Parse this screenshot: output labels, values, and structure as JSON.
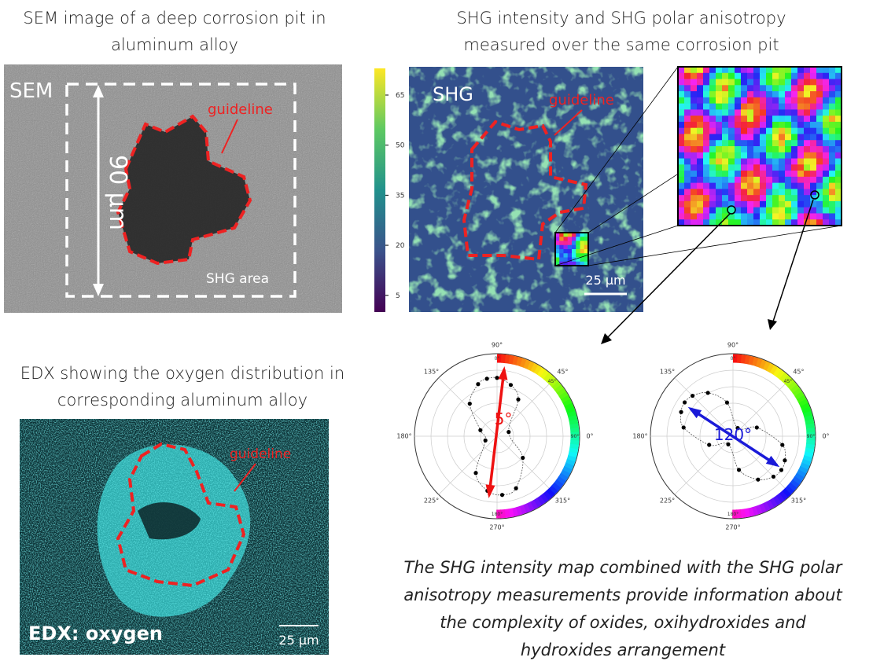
{
  "sem": {
    "title": [
      "SEM image of a deep corrosion pit in",
      "aluminum alloy"
    ],
    "label": "SEM",
    "guideline": "guideline",
    "scale": "90 µm",
    "area": "SHG area"
  },
  "shg": {
    "title": [
      "SHG intensity and SHG polar anisotropy",
      "measured over the same corrosion pit"
    ],
    "label": "SHG",
    "guideline": "guideline",
    "scale": "25 µm",
    "colorbar": {
      "lim": [
        0,
        73
      ],
      "ticks": [
        5,
        20,
        35,
        50,
        65
      ]
    }
  },
  "edx": {
    "title": [
      "EDX showing the oxygen distribution in",
      "corresponding aluminum alloy"
    ],
    "label": "EDX: oxygen",
    "guideline": "guideline",
    "scale": "25 µm"
  },
  "polar": {
    "rlim": [
      0,
      1.4
    ],
    "plots": [
      {
        "angle_ticks": [
          {
            "value": 0,
            "label": "0°"
          },
          {
            "value": 45,
            "label": "45°"
          },
          {
            "value": 90,
            "label": "90°"
          },
          {
            "value": 135,
            "label": "135°"
          },
          {
            "value": 180,
            "label": "180°"
          },
          {
            "value": 225,
            "label": "225°"
          },
          {
            "value": 270,
            "label": "270°"
          },
          {
            "value": 315,
            "label": "315°"
          }
        ],
        "ring_labels": [
          {
            "value": 0,
            "label": "0°"
          },
          {
            "value": 45,
            "label": "45°"
          },
          {
            "value": 90,
            "label": "90°"
          },
          {
            "value": 180,
            "label": "180°"
          }
        ],
        "arrow_label": "5°",
        "theta": [
          20,
          60,
          75,
          90,
          100,
          110,
          130,
          160,
          200,
          240,
          260,
          275,
          290,
          320
        ],
        "r": [
          0.21,
          0.72,
          0.9,
          0.99,
          0.99,
          0.94,
          0.72,
          0.3,
          0.21,
          0.72,
          0.94,
          1.0,
          0.94,
          0.57
        ]
      },
      {
        "angle_ticks": [
          {
            "value": 0,
            "label": "0°"
          },
          {
            "value": 45,
            "label": "45°"
          },
          {
            "value": 90,
            "label": "90°"
          },
          {
            "value": 135,
            "label": "135°"
          },
          {
            "value": 180,
            "label": "180°"
          },
          {
            "value": 225,
            "label": "225°"
          },
          {
            "value": 270,
            "label": "270°"
          },
          {
            "value": 315,
            "label": "315°"
          }
        ],
        "ring_labels": [
          {
            "value": 0,
            "label": "0°"
          },
          {
            "value": 45,
            "label": "45°"
          },
          {
            "value": 90,
            "label": "90°"
          },
          {
            "value": 180,
            "label": "180°"
          }
        ],
        "arrow_label": "120°",
        "theta": [
          20,
          60,
          100,
          120,
          135,
          145,
          155,
          170,
          200,
          240,
          280,
          300,
          315,
          325,
          335,
          350
        ],
        "r": [
          0.43,
          0.16,
          0.58,
          0.85,
          0.97,
          1.0,
          0.97,
          0.85,
          0.43,
          0.16,
          0.58,
          0.85,
          0.97,
          1.0,
          0.97,
          0.85
        ]
      }
    ]
  },
  "caption": [
    "The SHG intensity map combined with the SHG polar",
    "anisotropy measurements provide information about",
    "the complexity of oxides, oxihydroxides and",
    "hydroxides arrangement"
  ]
}
